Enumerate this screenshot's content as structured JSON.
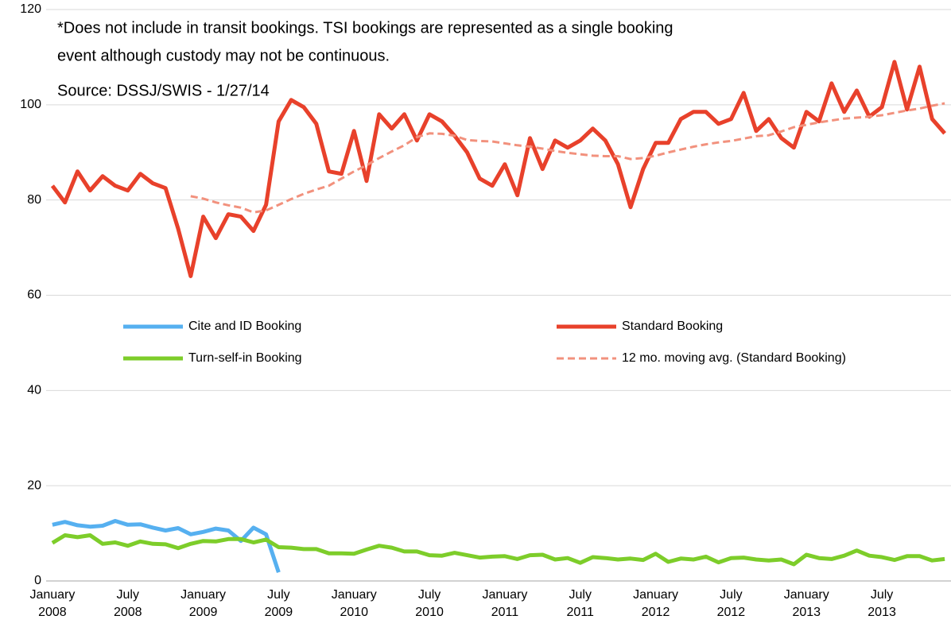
{
  "chart_data": {
    "type": "line",
    "annotations": [
      "*Does not include in transit bookings. TSI bookings are represented as a single booking",
      "event although custody may not be continuous.",
      "Source: DSSJ/SWIS - 1/27/14"
    ],
    "categories": [
      "January 2008",
      null,
      null,
      null,
      null,
      null,
      "July 2008",
      null,
      null,
      null,
      null,
      null,
      "January 2009",
      null,
      null,
      null,
      null,
      null,
      "July 2009",
      null,
      null,
      null,
      null,
      null,
      "January 2010",
      null,
      null,
      null,
      null,
      null,
      "July 2010",
      null,
      null,
      null,
      null,
      null,
      "January 2011",
      null,
      null,
      null,
      null,
      null,
      "July 2011",
      null,
      null,
      null,
      null,
      null,
      "January 2012",
      null,
      null,
      null,
      null,
      null,
      "July 2012",
      null,
      null,
      null,
      null,
      null,
      "January 2013",
      null,
      null,
      null,
      null,
      null,
      "July 2013",
      null,
      null,
      null,
      null,
      null
    ],
    "series": [
      {
        "name": "Cite and ID Booking",
        "color": "#56b0f0",
        "dashed": false,
        "values": [
          11.8,
          12.4,
          11.7,
          11.4,
          11.6,
          12.6,
          11.8,
          11.9,
          11.2,
          10.6,
          11.1,
          9.8,
          10.3,
          11,
          10.6,
          8.4,
          11.2,
          9.8,
          1.8,
          null,
          null,
          null,
          null,
          null,
          null,
          null,
          null,
          null,
          null,
          null,
          null,
          null,
          null,
          null,
          null,
          null,
          null,
          null,
          null,
          null,
          null,
          null,
          null,
          null,
          null,
          null,
          null,
          null,
          null,
          null,
          null,
          null,
          null,
          null,
          null,
          null,
          null,
          null,
          null,
          null,
          null,
          null,
          null,
          null,
          null,
          null,
          null,
          null,
          null,
          null,
          null,
          null
        ]
      },
      {
        "name": "Standard Booking",
        "color": "#e8412b",
        "dashed": false,
        "values": [
          83,
          79.5,
          86,
          82,
          85,
          83,
          82,
          85.5,
          83.5,
          82.5,
          74,
          64,
          76.5,
          72,
          77,
          76.5,
          73.5,
          79,
          96.5,
          101,
          99.5,
          96,
          86,
          85.5,
          94.5,
          84,
          98,
          95,
          98,
          92.5,
          98,
          96.5,
          93.5,
          90,
          84.5,
          83,
          87.5,
          81,
          93,
          86.5,
          92.5,
          91,
          92.5,
          95,
          92.5,
          87.5,
          78.5,
          86.5,
          92,
          92,
          97,
          98.5,
          98.5,
          96,
          97,
          102.5,
          94.5,
          97,
          93,
          91,
          98.5,
          96.5,
          104.5,
          98.5,
          103,
          97.5,
          99.5,
          109,
          99,
          108,
          97,
          94
        ]
      },
      {
        "name": "Turn-self-in Booking",
        "color": "#7dcd2a",
        "dashed": false,
        "values": [
          8,
          9.6,
          9.2,
          9.6,
          7.8,
          8.1,
          7.4,
          8.3,
          7.8,
          7.7,
          6.9,
          7.8,
          8.4,
          8.3,
          8.8,
          8.8,
          8.1,
          8.7,
          7.1,
          7,
          6.7,
          6.7,
          5.8,
          5.8,
          5.7,
          6.6,
          7.4,
          7,
          6.2,
          6.2,
          5.4,
          5.3,
          5.9,
          5.4,
          4.9,
          5.1,
          5.2,
          4.6,
          5.4,
          5.5,
          4.5,
          4.8,
          3.8,
          5,
          4.8,
          4.5,
          4.7,
          4.4,
          5.7,
          4,
          4.7,
          4.5,
          5.1,
          3.9,
          4.8,
          4.9,
          4.5,
          4.3,
          4.5,
          3.5,
          5.5,
          4.8,
          4.6,
          5.3,
          6.4,
          5.3,
          5,
          4.4,
          5.2,
          5.2,
          4.3,
          4.6
        ]
      },
      {
        "name": "12 mo. moving avg. (Standard Booking)",
        "color": "#f2917d",
        "dashed": true,
        "values": [
          null,
          null,
          null,
          null,
          null,
          null,
          null,
          null,
          null,
          null,
          null,
          80.8,
          80.3,
          79.5,
          78.9,
          78.4,
          77.4,
          77.8,
          79,
          80.2,
          81.3,
          82.2,
          83,
          84.5,
          86,
          87.3,
          88.8,
          90.2,
          91.5,
          93.2,
          94,
          93.9,
          93.5,
          92.6,
          92.4,
          92.3,
          91.9,
          91.5,
          91.2,
          90.8,
          90.3,
          89.9,
          89.6,
          89.3,
          89.2,
          89.2,
          88.6,
          88.8,
          89.3,
          90,
          90.6,
          91.2,
          91.7,
          92.1,
          92.4,
          92.9,
          93.4,
          93.6,
          94.4,
          95.3,
          95.8,
          96.3,
          96.7,
          97.1,
          97.3,
          97.5,
          97.8,
          98.3,
          98.8,
          99.2,
          99.8,
          100.3
        ]
      }
    ],
    "ylim": [
      0,
      120
    ],
    "yticks": [
      0,
      20,
      40,
      60,
      80,
      100,
      120
    ],
    "grid": true
  }
}
